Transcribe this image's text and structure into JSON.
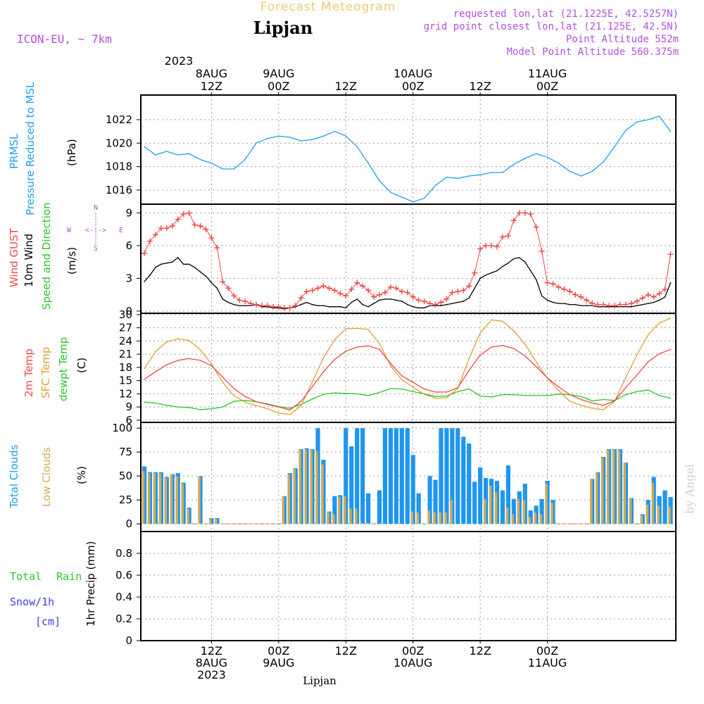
{
  "header": {
    "title": "Forecast Meteogram",
    "location": "Lipjan",
    "model": "ICON-EU, ~ 7km",
    "requested": "requested lon,lat (21.1225E, 42.5257N)",
    "grid_point": "grid point closest lon,lat (21.125E, 42.5N)",
    "point_altitude": "Point Altitude 552m",
    "model_altitude": "Model Point Altitude 560.375m",
    "credit": "by Angel",
    "footer_location": "Lipjan"
  },
  "time_axis": {
    "top_year": "2023",
    "ticks": [
      {
        "h": 12,
        "top": [
          "8AUG",
          "12Z"
        ],
        "bottom": [
          "12Z",
          "8AUG",
          "2023"
        ]
      },
      {
        "h": 24,
        "top": [
          "9AUG",
          "00Z"
        ],
        "bottom": [
          "00Z",
          "9AUG"
        ]
      },
      {
        "h": 36,
        "top": [
          "12Z"
        ],
        "bottom": [
          "12Z"
        ]
      },
      {
        "h": 48,
        "top": [
          "10AUG",
          "00Z"
        ],
        "bottom": [
          "00Z",
          "10AUG"
        ]
      },
      {
        "h": 60,
        "top": [
          "12Z"
        ],
        "bottom": [
          "12Z"
        ]
      },
      {
        "h": 72,
        "top": [
          "11AUG",
          "00Z"
        ],
        "bottom": [
          "00Z",
          "11AUG"
        ]
      }
    ]
  },
  "panels": {
    "pressure": {
      "labels": [
        "PRMSL",
        "Pressure Reduced to MSL"
      ],
      "unit": "(hPa)",
      "ticks": [
        "1016",
        "1018",
        "1020",
        "1022"
      ]
    },
    "wind": {
      "labels": [
        "Wind GUST",
        "10m Wind",
        "Speed and Direction"
      ],
      "unit": "(m/s)",
      "ticks": [
        "0",
        "3",
        "6",
        "9"
      ],
      "compass": {
        "n": "N",
        "s": "S",
        "w": "W",
        "e": "E",
        "arrows": "<-|->"
      }
    },
    "temperature": {
      "labels": [
        "2m Temp",
        "SFC Temp",
        "dewpt Temp"
      ],
      "unit": "(C)",
      "ticks": [
        "6",
        "9",
        "12",
        "15",
        "18",
        "21",
        "24",
        "27",
        "30"
      ]
    },
    "clouds": {
      "labels": [
        "Total Clouds",
        "Low Clouds"
      ],
      "unit": "(%)",
      "ticks": [
        "0",
        "25",
        "50",
        "75",
        "100"
      ]
    },
    "precip": {
      "labels": [
        "Total",
        "Rain",
        "Snow/1h",
        "[cm]"
      ],
      "unit": "1hr Precip (mm)",
      "ticks": [
        "0",
        "0.2",
        "0.4",
        "0.6",
        "0.8"
      ]
    }
  },
  "colors": {
    "pressure": "#1ea0f0",
    "gust": "#f04848",
    "wind": "#000000",
    "temp2m": "#f04848",
    "sfc": "#e0a030",
    "dewpt": "#28c828",
    "total_clouds": "#1e96f0",
    "low_clouds": "#d2aa50",
    "header_title": "#f0c878",
    "header_purple": "#b450dc",
    "grid": "#999999",
    "rain": "#28c828",
    "snow": "#3c3cf0"
  },
  "chart_data": [
    {
      "type": "line",
      "name": "pressure",
      "title": "PRMSL Pressure Reduced to MSL",
      "ylabel": "(hPa)",
      "ylim": [
        1014.8,
        1024.1
      ],
      "x": [
        0,
        2,
        4,
        6,
        8,
        10,
        12,
        14,
        16,
        18,
        20,
        22,
        24,
        26,
        28,
        30,
        32,
        34,
        36,
        38,
        40,
        42,
        44,
        46,
        48,
        50,
        52,
        54,
        56,
        58,
        60,
        62,
        64,
        66,
        68,
        70,
        72,
        74,
        76,
        78,
        80,
        82,
        84,
        86,
        88,
        90,
        92,
        94
      ],
      "series": [
        {
          "values": [
            1019.7,
            1019.0,
            1019.3,
            1019.0,
            1019.1,
            1018.6,
            1018.3,
            1017.8,
            1017.8,
            1018.6,
            1020.0,
            1020.4,
            1020.6,
            1020.5,
            1020.2,
            1020.3,
            1020.6,
            1021.0,
            1020.6,
            1019.7,
            1018.3,
            1016.8,
            1015.8,
            1015.4,
            1015.0,
            1015.3,
            1016.4,
            1017.1,
            1017.0,
            1017.2,
            1017.3,
            1017.5,
            1017.5,
            1018.2,
            1018.7,
            1019.1,
            1018.8,
            1018.3,
            1017.6,
            1017.2,
            1017.6,
            1018.4,
            1019.7,
            1021.1,
            1021.8,
            1022.0,
            1022.3,
            1021.0
          ]
        }
      ]
    },
    {
      "type": "line",
      "name": "wind",
      "title": "Wind GUST / 10m Wind Speed and Direction",
      "ylabel": "(m/s)",
      "ylim": [
        -0.2,
        9.8
      ],
      "x": [
        0,
        1,
        2,
        3,
        4,
        5,
        6,
        7,
        8,
        9,
        10,
        11,
        12,
        13,
        14,
        15,
        16,
        17,
        18,
        19,
        20,
        21,
        22,
        23,
        24,
        25,
        26,
        27,
        28,
        29,
        30,
        31,
        32,
        33,
        34,
        35,
        36,
        37,
        38,
        39,
        40,
        41,
        42,
        43,
        44,
        45,
        46,
        47,
        48,
        49,
        50,
        51,
        52,
        53,
        54,
        55,
        56,
        57,
        58,
        59,
        60,
        61,
        62,
        63,
        64,
        65,
        66,
        67,
        68,
        69,
        70,
        71,
        72,
        73,
        74,
        75,
        76,
        77,
        78,
        79,
        80,
        81,
        82,
        83,
        84,
        85,
        86,
        87,
        88,
        89,
        90,
        91,
        92,
        93,
        94
      ],
      "series": [
        {
          "name": "Wind GUST",
          "values": [
            5.3,
            6.4,
            7.0,
            7.6,
            7.6,
            7.8,
            8.4,
            8.9,
            9.0,
            7.9,
            7.8,
            7.5,
            6.7,
            5.8,
            2.7,
            2.1,
            1.4,
            1.0,
            0.9,
            0.7,
            0.6,
            0.5,
            0.5,
            0.4,
            0.4,
            0.3,
            0.3,
            0.5,
            1.2,
            1.8,
            1.9,
            2.1,
            2.3,
            2.1,
            1.9,
            1.6,
            1.4,
            2.0,
            2.6,
            2.3,
            1.9,
            1.3,
            1.5,
            1.7,
            2.2,
            2.1,
            1.8,
            1.7,
            1.3,
            1.0,
            0.9,
            0.7,
            0.6,
            0.8,
            1.1,
            1.7,
            1.8,
            1.9,
            2.3,
            3.5,
            5.7,
            6.0,
            6.0,
            5.9,
            6.8,
            6.9,
            8.3,
            9.0,
            9.0,
            8.9,
            7.7,
            5.5,
            2.6,
            2.5,
            2.2,
            2.0,
            1.8,
            1.5,
            1.3,
            1.0,
            0.7,
            0.6,
            0.6,
            0.5,
            0.5,
            0.6,
            0.6,
            0.7,
            0.9,
            1.2,
            1.5,
            1.3,
            1.6,
            2.0,
            5.2
          ]
        },
        {
          "name": "10m Wind",
          "values": [
            2.7,
            3.3,
            4.0,
            4.3,
            4.4,
            4.5,
            4.9,
            4.3,
            4.3,
            4.0,
            3.6,
            3.2,
            2.6,
            2.1,
            1.1,
            0.8,
            0.6,
            0.5,
            0.5,
            0.5,
            0.6,
            0.4,
            0.4,
            0.3,
            0.3,
            0.2,
            0.3,
            0.4,
            0.6,
            0.8,
            0.6,
            0.5,
            0.5,
            0.4,
            0.4,
            0.4,
            0.3,
            0.8,
            1.1,
            0.6,
            0.4,
            0.7,
            1.0,
            1.1,
            1.1,
            1.0,
            0.9,
            0.6,
            0.4,
            0.3,
            0.3,
            0.5,
            0.5,
            0.5,
            0.6,
            0.7,
            0.8,
            0.9,
            1.2,
            2.1,
            3.0,
            3.3,
            3.5,
            3.7,
            4.1,
            4.4,
            4.8,
            4.9,
            4.5,
            3.7,
            2.9,
            1.4,
            1.0,
            0.8,
            0.7,
            0.7,
            0.6,
            0.6,
            0.5,
            0.5,
            0.5,
            0.4,
            0.4,
            0.4,
            0.4,
            0.4,
            0.4,
            0.4,
            0.5,
            0.6,
            0.7,
            0.8,
            1.0,
            1.3,
            2.6
          ]
        }
      ]
    },
    {
      "type": "line",
      "name": "temperature",
      "title": "2m Temp / SFC Temp / dewpt Temp",
      "ylabel": "(C)",
      "ylim": [
        5.5,
        30.3
      ],
      "x": [
        0,
        2,
        4,
        6,
        8,
        10,
        12,
        14,
        16,
        18,
        20,
        22,
        24,
        26,
        28,
        30,
        32,
        34,
        36,
        38,
        40,
        42,
        44,
        46,
        48,
        50,
        52,
        54,
        56,
        58,
        60,
        62,
        64,
        66,
        68,
        70,
        72,
        74,
        76,
        78,
        80,
        82,
        84,
        86,
        88,
        90,
        92,
        94
      ],
      "series": [
        {
          "name": "2m Temp",
          "values": [
            15.3,
            17.0,
            18.6,
            19.6,
            20.0,
            19.6,
            18.4,
            15.8,
            13.2,
            11.4,
            10.2,
            9.6,
            9.0,
            8.3,
            10.3,
            13.6,
            17.0,
            19.8,
            21.7,
            22.6,
            22.9,
            22.1,
            18.9,
            16.1,
            14.6,
            13.1,
            12.4,
            12.4,
            13.4,
            17.3,
            20.8,
            22.6,
            23.0,
            22.3,
            20.6,
            18.2,
            15.6,
            13.6,
            11.8,
            10.7,
            9.9,
            9.4,
            10.4,
            13.4,
            16.3,
            19.3,
            21.1,
            22.1
          ]
        },
        {
          "name": "SFC Temp",
          "values": [
            17.7,
            21.6,
            23.8,
            24.5,
            24.1,
            22.0,
            18.8,
            14.6,
            11.6,
            10.1,
            9.3,
            8.6,
            7.6,
            7.3,
            9.3,
            14.7,
            20.2,
            24.3,
            26.8,
            26.9,
            26.6,
            23.4,
            18.4,
            15.2,
            13.5,
            11.9,
            11.0,
            11.1,
            13.2,
            20.0,
            25.8,
            28.8,
            28.5,
            26.3,
            23.3,
            19.3,
            15.5,
            12.8,
            10.3,
            9.4,
            8.7,
            8.4,
            10.3,
            15.7,
            20.9,
            25.4,
            28.1,
            29.2
          ]
        },
        {
          "name": "dewpt Temp",
          "values": [
            10.1,
            9.9,
            9.4,
            9.0,
            8.9,
            8.4,
            8.6,
            9.0,
            10.3,
            10.5,
            10.2,
            9.7,
            9.1,
            8.7,
            9.6,
            10.8,
            11.9,
            12.2,
            12.1,
            12.0,
            11.6,
            12.3,
            13.2,
            13.1,
            12.5,
            12.0,
            11.4,
            11.5,
            12.5,
            13.1,
            11.5,
            11.3,
            11.8,
            11.8,
            11.6,
            11.6,
            11.6,
            11.9,
            11.8,
            11.4,
            10.4,
            10.7,
            10.5,
            11.8,
            12.5,
            12.9,
            11.6,
            11.0
          ]
        }
      ]
    },
    {
      "type": "bar",
      "name": "clouds",
      "title": "Total Clouds / Low Clouds",
      "ylabel": "(%)",
      "ylim": [
        -8,
        106
      ],
      "x": [
        0,
        1,
        2,
        3,
        4,
        5,
        6,
        7,
        8,
        9,
        10,
        11,
        12,
        13,
        14,
        15,
        16,
        17,
        18,
        19,
        20,
        21,
        22,
        23,
        24,
        25,
        26,
        27,
        28,
        29,
        30,
        31,
        32,
        33,
        34,
        35,
        36,
        37,
        38,
        39,
        40,
        41,
        42,
        43,
        44,
        45,
        46,
        47,
        48,
        49,
        50,
        51,
        52,
        53,
        54,
        55,
        56,
        57,
        58,
        59,
        60,
        61,
        62,
        63,
        64,
        65,
        66,
        67,
        68,
        69,
        70,
        71,
        72,
        73,
        74,
        75,
        76,
        77,
        78,
        79,
        80,
        81,
        82,
        83,
        84,
        85,
        86,
        87,
        88,
        89,
        90,
        91,
        92,
        93,
        94
      ],
      "series": [
        {
          "name": "Total Clouds",
          "values": [
            60,
            54,
            54,
            54,
            49,
            52,
            53,
            43,
            17,
            0,
            50,
            0,
            6,
            6,
            0,
            0,
            0,
            0,
            0,
            0,
            0,
            0,
            0,
            0,
            0,
            29,
            53,
            58,
            78,
            79,
            78,
            100,
            67,
            13,
            29,
            30,
            100,
            81,
            100,
            100,
            32,
            0,
            35,
            100,
            100,
            100,
            100,
            100,
            72,
            32,
            0,
            50,
            46,
            100,
            100,
            100,
            100,
            91,
            84,
            44,
            59,
            48,
            47,
            45,
            35,
            61,
            26,
            34,
            42,
            14,
            19,
            26,
            45,
            25,
            0,
            0,
            0,
            0,
            0,
            0,
            47,
            54,
            70,
            78,
            78,
            78,
            64,
            27,
            0,
            10,
            25,
            49,
            29,
            35,
            28
          ]
        },
        {
          "name": "Low Clouds",
          "values": [
            55,
            53,
            53,
            53,
            48,
            52,
            50,
            42,
            16,
            0,
            50,
            0,
            5,
            5,
            0,
            0,
            0,
            0,
            0,
            0,
            0,
            0,
            0,
            0,
            0,
            29,
            52,
            57,
            77,
            78,
            77,
            76,
            62,
            13,
            10,
            28,
            29,
            16,
            16,
            1,
            1,
            0,
            0,
            0,
            0,
            0,
            0,
            0,
            13,
            12,
            0,
            14,
            12,
            12,
            12,
            25,
            0,
            0,
            0,
            0,
            0,
            26,
            40,
            33,
            0,
            17,
            10,
            26,
            25,
            7,
            12,
            10,
            42,
            22,
            0,
            0,
            0,
            0,
            0,
            0,
            47,
            54,
            69,
            77,
            77,
            77,
            64,
            27,
            0,
            9,
            20,
            43,
            19,
            0,
            18
          ]
        }
      ]
    },
    {
      "type": "bar",
      "name": "precip",
      "title": "Total Rain / Snow/1h",
      "ylabel": "1hr Precip (mm)",
      "ylim": [
        0,
        1.0
      ],
      "x": [
        0,
        94
      ],
      "series": [
        {
          "name": "Total Rain",
          "values": [
            0,
            0
          ]
        }
      ]
    }
  ]
}
